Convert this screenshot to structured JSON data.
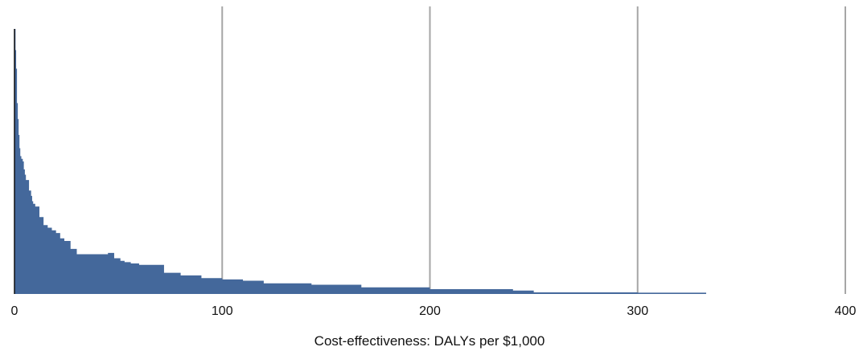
{
  "chart_data": {
    "type": "area",
    "title": "",
    "xlabel": "Cost-effectiveness: DALYs per $1,000",
    "ylabel": "",
    "xlim": [
      0,
      400
    ],
    "xticks": [
      0,
      100,
      200,
      300,
      400
    ],
    "xtick_labels": [
      "0",
      "100",
      "200",
      "300",
      "400"
    ],
    "ylim": [
      0,
      1
    ],
    "grid": "vertical",
    "legend": "none",
    "fill_color": "#44689b",
    "grid_color": "#a6a6a6",
    "series": [
      {
        "x": [
          0,
          0.5,
          0.8,
          1.2,
          1.6,
          2.0,
          2.4,
          2.8,
          3.3,
          4.0,
          4.5,
          5.0,
          5.5,
          6.0,
          7.0,
          8.0,
          8.5,
          9.0,
          10.0,
          12.0,
          14.0,
          16.0,
          18.0,
          20.0,
          22.0,
          24.0,
          27.0,
          30.0,
          36.0,
          45.0,
          48.0,
          51.0,
          53.0,
          56.0,
          60.0,
          65.0,
          72.0,
          80.0,
          90.0,
          95.0,
          100.0,
          110.0,
          120.0,
          143.0,
          167.0,
          200.0,
          240.0,
          250.0,
          300.0,
          333.0
        ],
        "y": [
          1.0,
          0.92,
          0.85,
          0.72,
          0.66,
          0.6,
          0.55,
          0.52,
          0.51,
          0.5,
          0.47,
          0.45,
          0.43,
          0.43,
          0.39,
          0.37,
          0.35,
          0.34,
          0.33,
          0.29,
          0.26,
          0.25,
          0.24,
          0.23,
          0.21,
          0.2,
          0.17,
          0.15,
          0.15,
          0.155,
          0.135,
          0.125,
          0.12,
          0.115,
          0.11,
          0.11,
          0.08,
          0.07,
          0.06,
          0.06,
          0.055,
          0.05,
          0.04,
          0.035,
          0.025,
          0.018,
          0.013,
          0.006,
          0.005,
          0.004
        ]
      }
    ]
  }
}
